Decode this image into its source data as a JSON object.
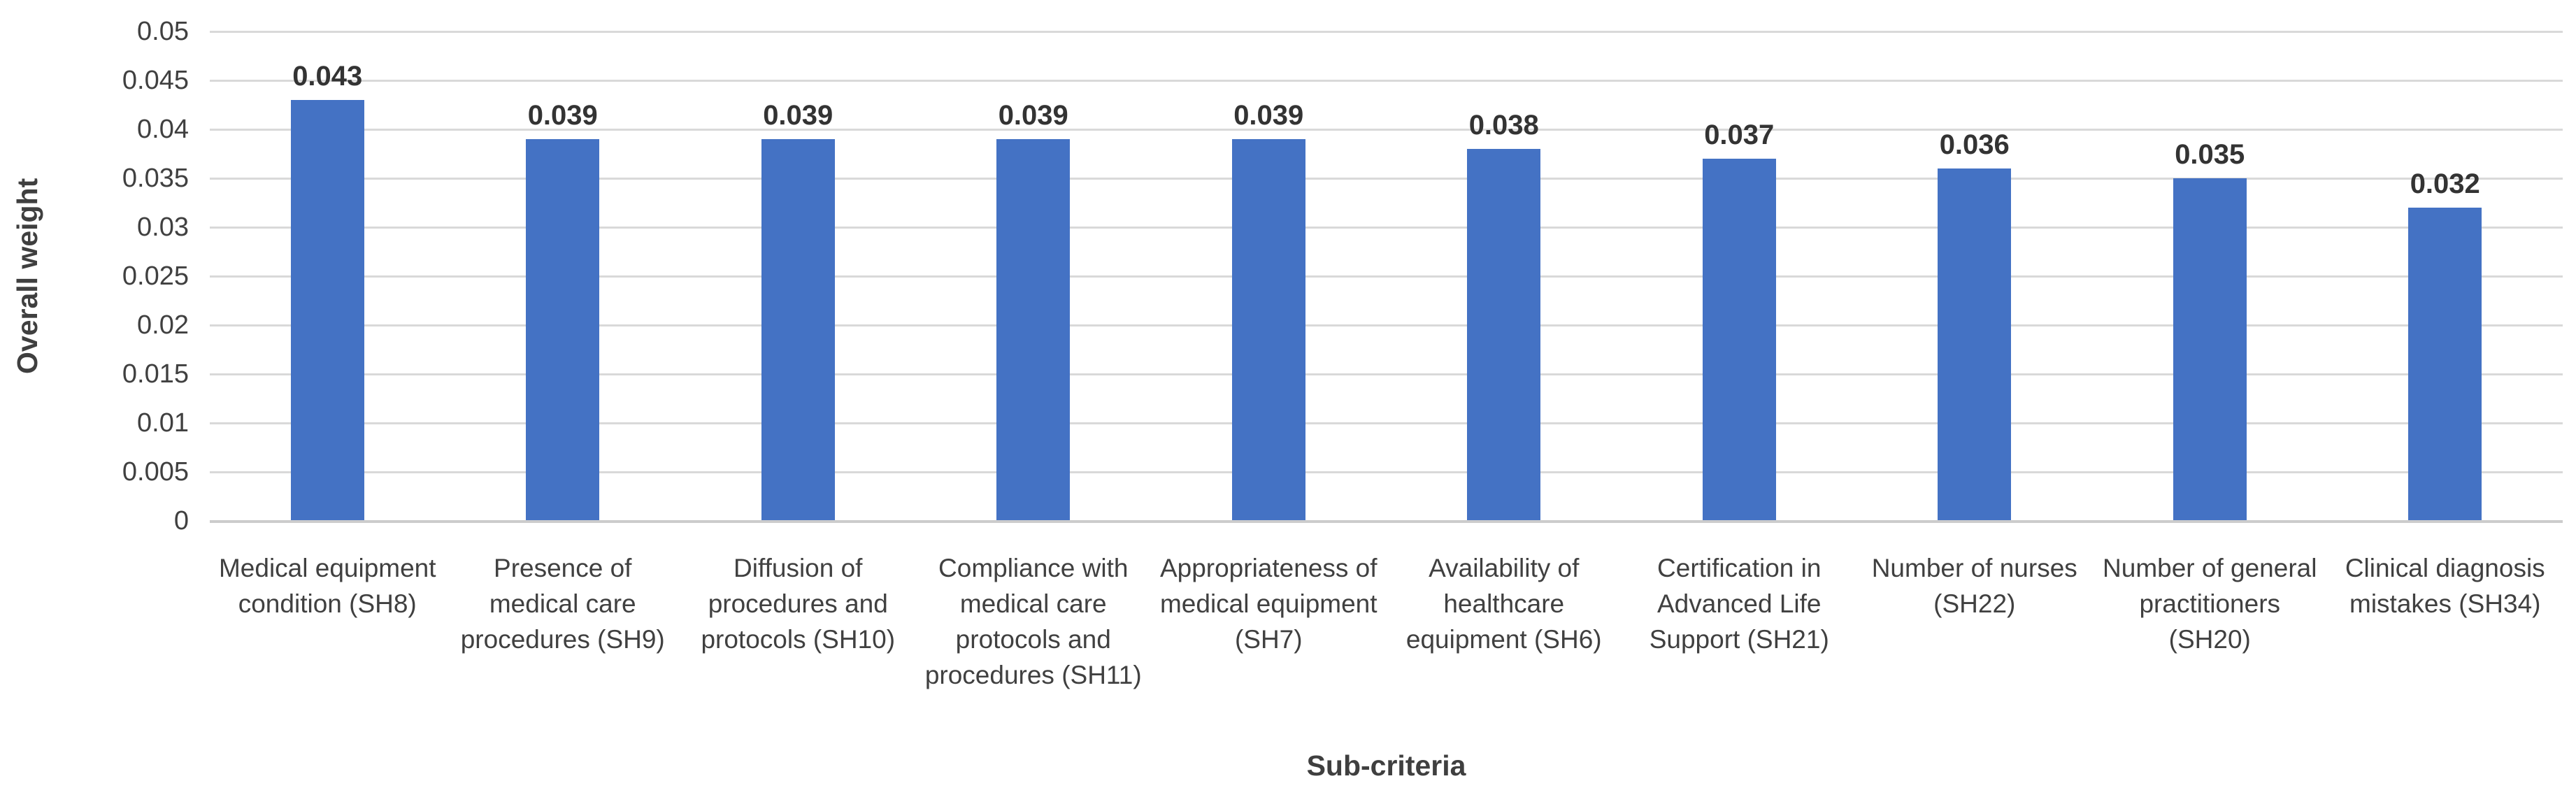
{
  "chart_data": {
    "type": "bar",
    "title": "",
    "xlabel": "Sub-criteria",
    "ylabel": "Overall weight",
    "categories": [
      "Medical equipment condition (SH8)",
      "Presence of medical care procedures (SH9)",
      "Diffusion of procedures and protocols (SH10)",
      "Compliance with medical care protocols and procedures (SH11)",
      "Appropriateness of medical equipment (SH7)",
      "Availability of healthcare equipment (SH6)",
      "Certification in Advanced Life Support (SH21)",
      "Number of nurses (SH22)",
      "Number of general practitioners (SH20)",
      "Clinical diagnosis mistakes (SH34)"
    ],
    "values": [
      0.043,
      0.039,
      0.039,
      0.039,
      0.039,
      0.038,
      0.037,
      0.036,
      0.035,
      0.032
    ],
    "data_labels": [
      "0.043",
      "0.039",
      "0.039",
      "0.039",
      "0.039",
      "0.038",
      "0.037",
      "0.036",
      "0.035",
      "0.032"
    ],
    "ylim": [
      0,
      0.05
    ],
    "yticks": [
      0,
      0.005,
      0.01,
      0.015,
      0.02,
      0.025,
      0.03,
      0.035,
      0.04,
      0.045,
      0.05
    ],
    "ytick_labels": [
      "0",
      "0.005",
      "0.01",
      "0.015",
      "0.02",
      "0.025",
      "0.03",
      "0.035",
      "0.04",
      "0.045",
      "0.05"
    ],
    "grid": true,
    "legend": false,
    "bar_color": "#4472c4",
    "gridline_color": "#d9d9d9",
    "axis_line_color": "#cccccc",
    "tick_text_color": "#404040",
    "data_label_color": "#333333",
    "axis_title_color": "#3f3f3f",
    "background_color": "#ffffff"
  }
}
